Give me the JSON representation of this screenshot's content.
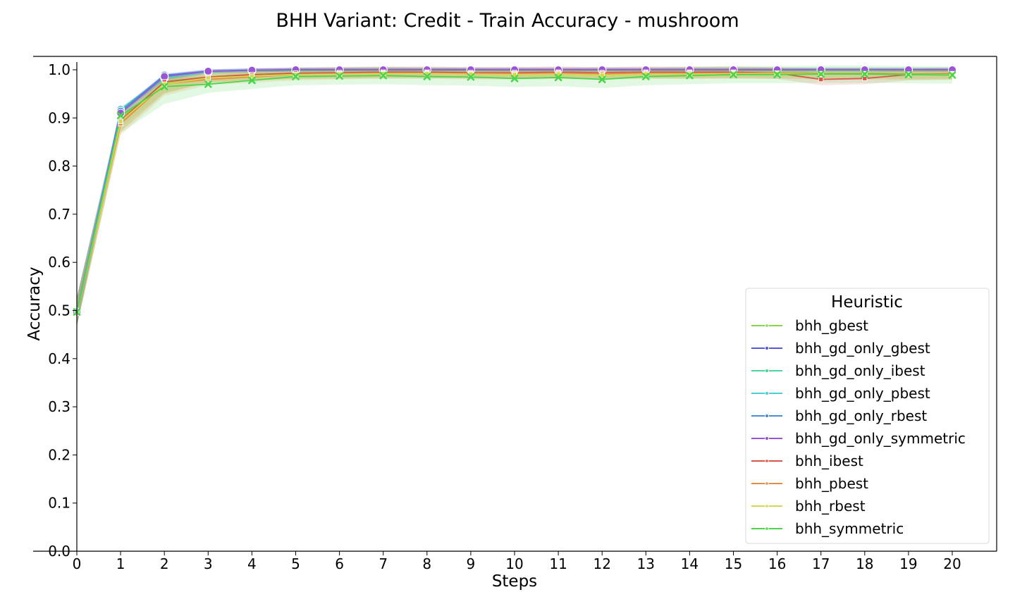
{
  "chart_data": {
    "type": "line",
    "title": "BHH Variant: Credit - Train Accuracy - mushroom",
    "xlabel": "Steps",
    "ylabel": "Accuracy",
    "xlim": [
      0,
      21
    ],
    "ylim": [
      0,
      1.025
    ],
    "x": [
      0,
      1,
      2,
      3,
      4,
      5,
      6,
      7,
      8,
      9,
      10,
      11,
      12,
      13,
      14,
      15,
      16,
      17,
      18,
      19,
      20
    ],
    "xticks": [
      "0",
      "1",
      "2",
      "3",
      "4",
      "5",
      "6",
      "7",
      "8",
      "9",
      "10",
      "11",
      "12",
      "13",
      "14",
      "15",
      "16",
      "17",
      "18",
      "19",
      "20"
    ],
    "yticks": [
      "0.0",
      "0.1",
      "0.2",
      "0.3",
      "0.4",
      "0.5",
      "0.6",
      "0.7",
      "0.8",
      "0.9",
      "1.0"
    ],
    "grid": false,
    "legend": {
      "title": "Heuristic",
      "position": "lower-right"
    },
    "series": [
      {
        "name": "bhh_gbest",
        "color": "#88d44a",
        "marker": "square",
        "values": [
          0.497,
          0.9,
          0.972,
          0.985,
          0.988,
          0.992,
          0.993,
          0.994,
          0.994,
          0.993,
          0.992,
          0.993,
          0.99,
          0.993,
          0.993,
          0.994,
          0.994,
          0.993,
          0.993,
          0.992,
          0.992
        ],
        "band": 0.01
      },
      {
        "name": "bhh_gd_only_gbest",
        "color": "#5a57d8",
        "marker": "circle",
        "values": [
          0.497,
          0.915,
          0.987,
          0.997,
          0.999,
          1.0,
          1.0,
          1.0,
          1.0,
          1.0,
          1.0,
          1.0,
          1.0,
          1.0,
          1.0,
          1.0,
          1.0,
          1.0,
          1.0,
          1.0,
          1.0
        ],
        "band": 0.004
      },
      {
        "name": "bhh_gd_only_ibest",
        "color": "#4cd49e",
        "marker": "circle",
        "values": [
          0.497,
          0.913,
          0.983,
          0.995,
          0.998,
          0.999,
          1.0,
          1.0,
          1.0,
          1.0,
          1.0,
          1.0,
          1.0,
          1.0,
          1.0,
          1.0,
          1.0,
          1.0,
          1.0,
          1.0,
          1.0
        ],
        "band": 0.005
      },
      {
        "name": "bhh_gd_only_pbest",
        "color": "#4ecfd6",
        "marker": "circle",
        "values": [
          0.497,
          0.918,
          0.985,
          0.996,
          0.999,
          1.0,
          1.0,
          1.0,
          1.0,
          1.0,
          1.0,
          1.0,
          1.0,
          1.0,
          1.0,
          1.0,
          1.0,
          1.0,
          1.0,
          1.0,
          1.0
        ],
        "band": 0.004
      },
      {
        "name": "bhh_gd_only_rbest",
        "color": "#4a8ed8",
        "marker": "circle",
        "values": [
          0.497,
          0.914,
          0.989,
          0.997,
          0.999,
          1.0,
          1.0,
          1.0,
          1.0,
          1.0,
          1.0,
          1.0,
          1.0,
          1.0,
          1.0,
          1.0,
          1.0,
          1.0,
          1.0,
          1.0,
          1.0
        ],
        "band": 0.004
      },
      {
        "name": "bhh_gd_only_symmetric",
        "color": "#9a55d6",
        "marker": "circle",
        "values": [
          0.497,
          0.91,
          0.986,
          0.997,
          0.999,
          1.0,
          1.0,
          1.0,
          1.0,
          1.0,
          1.0,
          1.0,
          1.0,
          1.0,
          1.0,
          1.0,
          1.0,
          1.0,
          1.0,
          1.0,
          1.0
        ],
        "band": 0.004
      },
      {
        "name": "bhh_ibest",
        "color": "#d8574a",
        "marker": "square",
        "values": [
          0.497,
          0.895,
          0.975,
          0.985,
          0.99,
          0.993,
          0.994,
          0.995,
          0.995,
          0.994,
          0.994,
          0.995,
          0.994,
          0.995,
          0.995,
          0.995,
          0.993,
          0.98,
          0.982,
          0.99,
          0.992
        ],
        "band": 0.012
      },
      {
        "name": "bhh_pbest",
        "color": "#e08e4a",
        "marker": "square",
        "values": [
          0.497,
          0.888,
          0.97,
          0.98,
          0.985,
          0.99,
          0.992,
          0.993,
          0.993,
          0.992,
          0.992,
          0.993,
          0.992,
          0.993,
          0.993,
          0.993,
          0.993,
          0.992,
          0.992,
          0.991,
          0.991
        ],
        "band": 0.012
      },
      {
        "name": "bhh_rbest",
        "color": "#d4d84a",
        "marker": "square",
        "values": [
          0.497,
          0.893,
          0.97,
          0.983,
          0.987,
          0.99,
          0.991,
          0.992,
          0.992,
          0.991,
          0.99,
          0.991,
          0.989,
          0.991,
          0.991,
          0.992,
          0.992,
          0.991,
          0.991,
          0.99,
          0.99
        ],
        "band": 0.01
      },
      {
        "name": "bhh_symmetric",
        "color": "#4ed44c",
        "marker": "x",
        "values": [
          0.497,
          0.905,
          0.965,
          0.97,
          0.978,
          0.986,
          0.987,
          0.988,
          0.986,
          0.985,
          0.982,
          0.984,
          0.98,
          0.986,
          0.988,
          0.99,
          0.99,
          0.991,
          0.991,
          0.99,
          0.989
        ],
        "band": 0.018
      }
    ]
  }
}
